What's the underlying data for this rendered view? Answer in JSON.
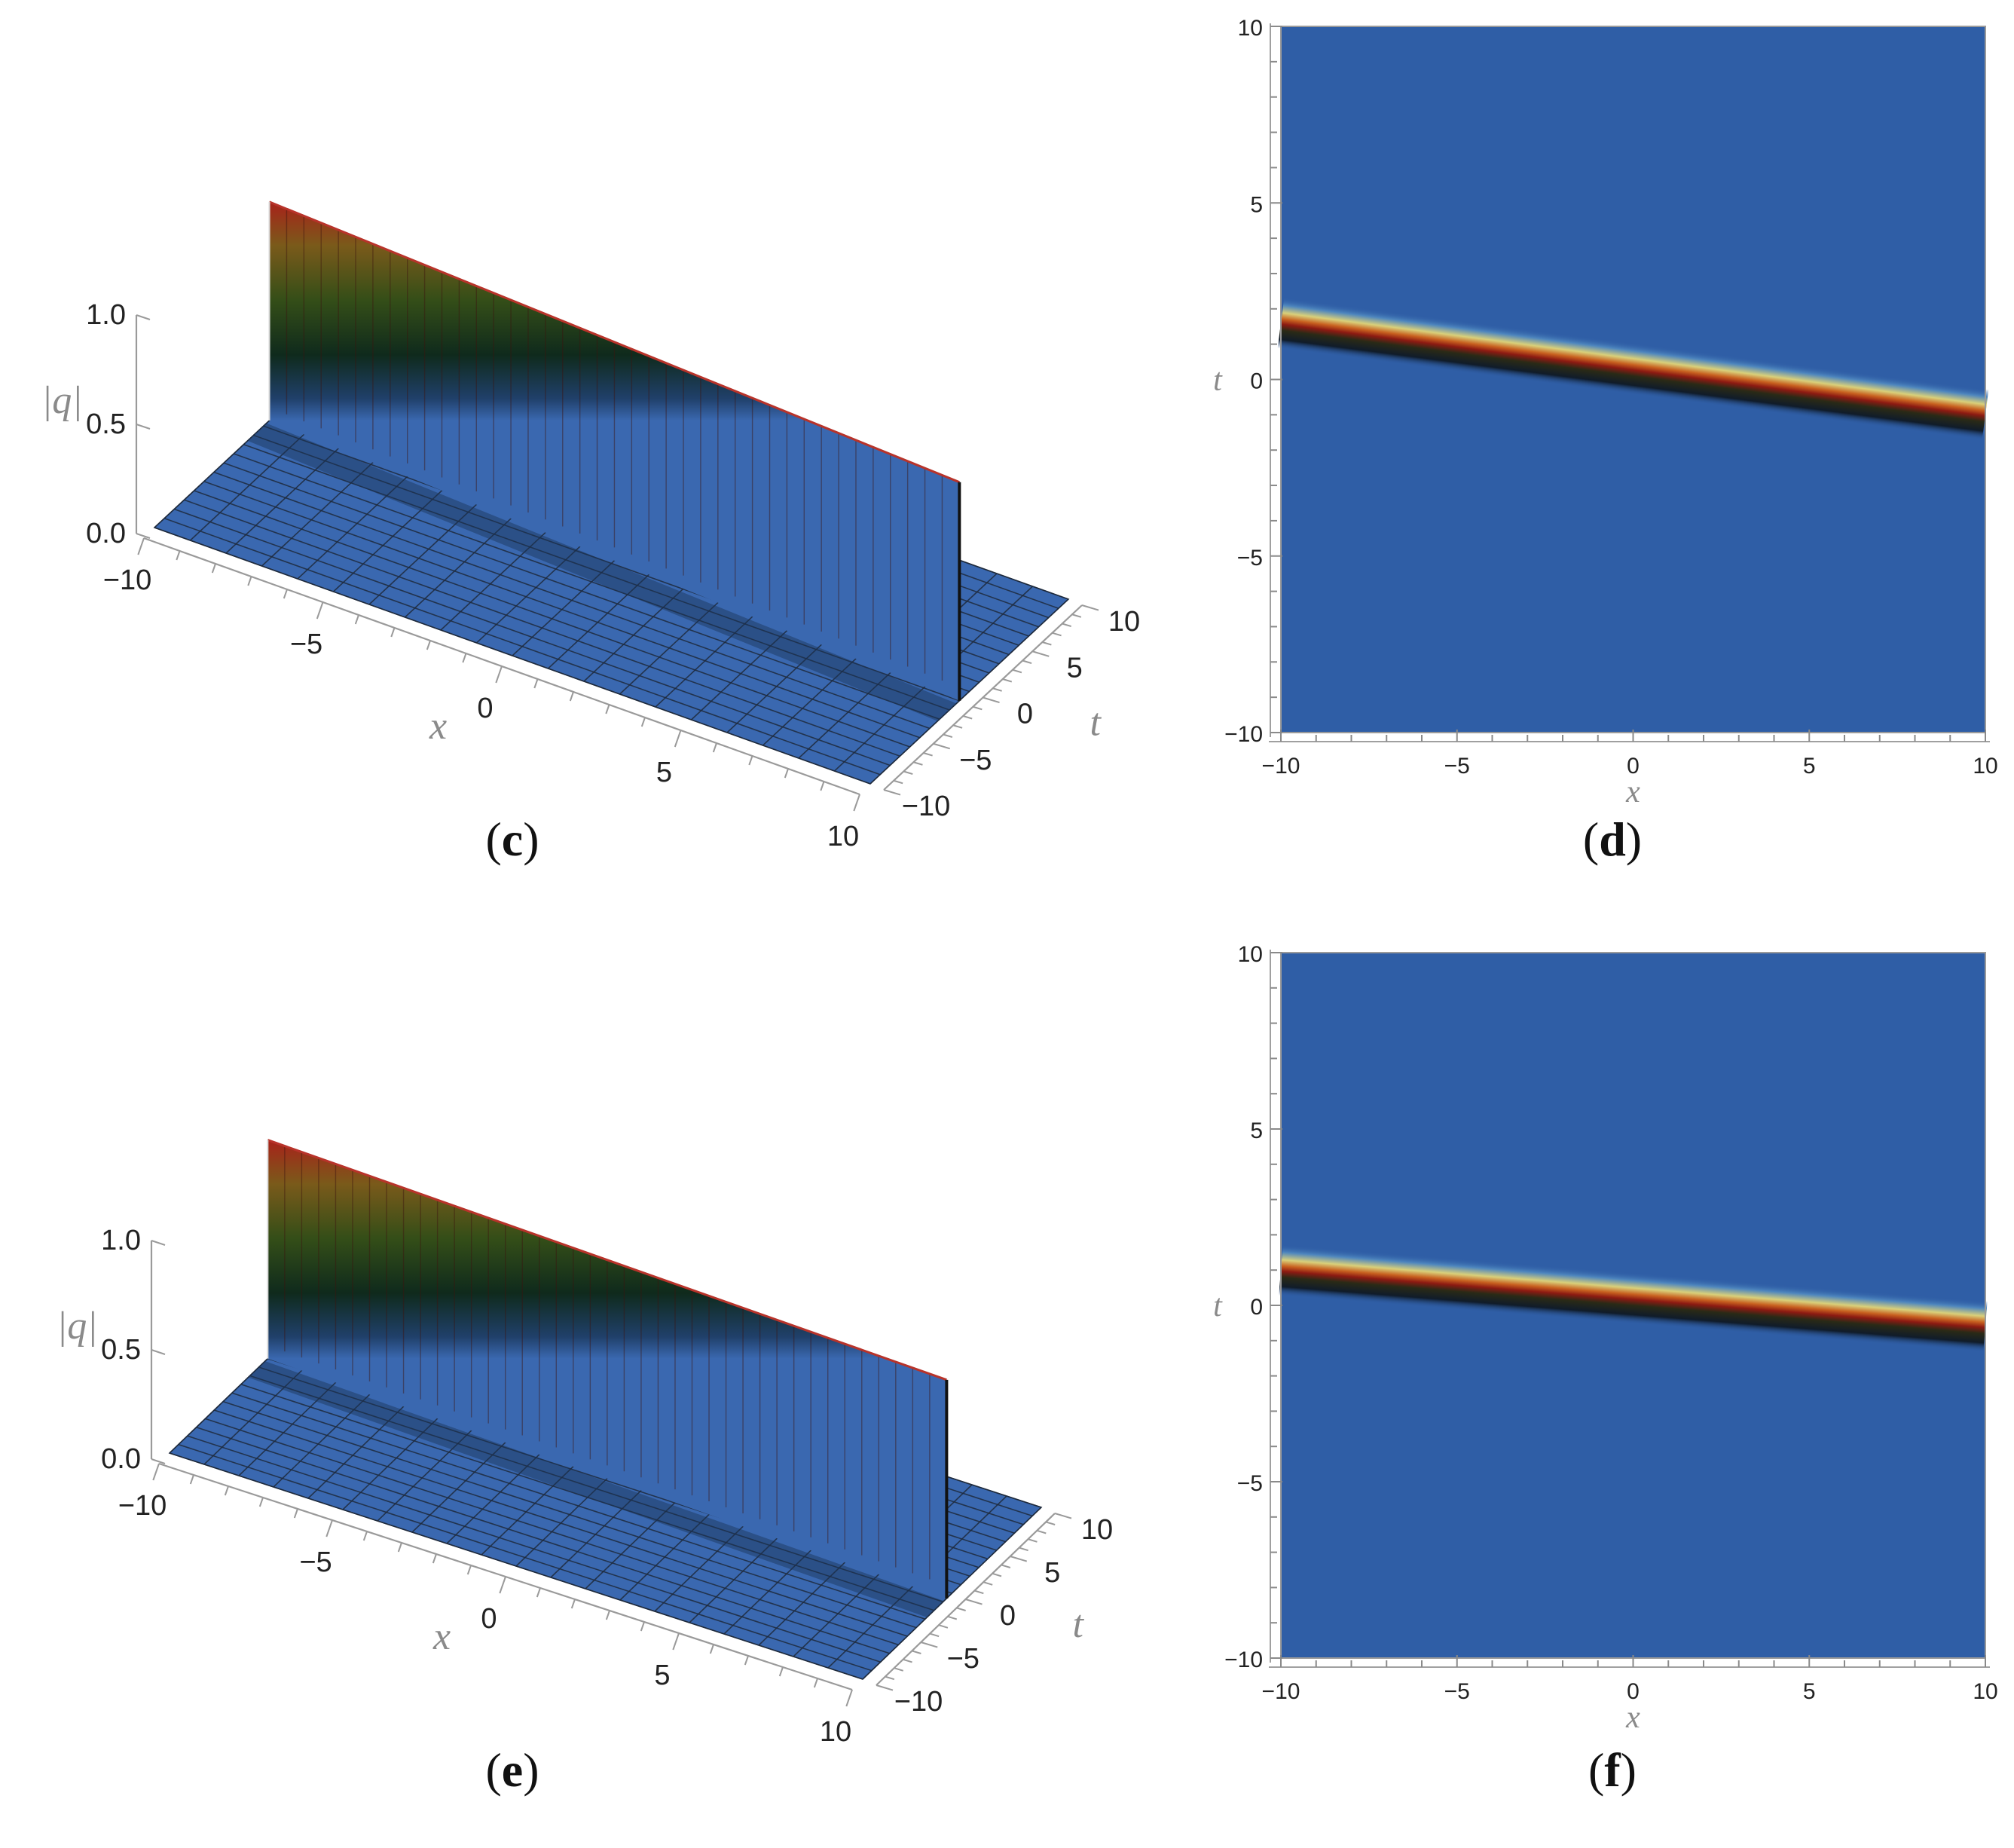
{
  "chart_data": [
    {
      "panel": "c",
      "type": "surface3d",
      "xlabel": "x",
      "ylabel": "t",
      "zlabel": "|q|",
      "xlim": [
        -10,
        10
      ],
      "ylim": [
        -10,
        10
      ],
      "zlim": [
        0,
        1
      ],
      "x_ticks": [
        "-10",
        "-5",
        "0",
        "5",
        "10"
      ],
      "y_ticks": [
        "-10",
        "-5",
        "0",
        "5",
        "10"
      ],
      "z_ticks": [
        "0.0",
        "0.5",
        "1.0"
      ],
      "wave": {
        "line_t_at_x_min": 1.6,
        "line_t_at_x_max": -1.0,
        "peak": 1.0
      },
      "label": {
        "open": "(",
        "letter": "c",
        "close": ")"
      }
    },
    {
      "panel": "d",
      "type": "density",
      "xlabel": "x",
      "ylabel": "t",
      "xlim": [
        -10,
        10
      ],
      "ylim": [
        -10,
        10
      ],
      "x_ticks": [
        "-10",
        "-5",
        "0",
        "5",
        "10"
      ],
      "y_ticks": [
        "-10",
        "-5",
        "0",
        "5",
        "10"
      ],
      "wave": {
        "line_t_at_x_min": 1.6,
        "line_t_at_x_max": -1.0
      },
      "label": {
        "open": "(",
        "letter": "d",
        "close": ")"
      }
    },
    {
      "panel": "e",
      "type": "surface3d",
      "xlabel": "x",
      "ylabel": "t",
      "zlabel": "|q|",
      "xlim": [
        -10,
        10
      ],
      "ylim": [
        -10,
        10
      ],
      "zlim": [
        0,
        1
      ],
      "x_ticks": [
        "-10",
        "-5",
        "0",
        "5",
        "10"
      ],
      "y_ticks": [
        "-10",
        "-5",
        "0",
        "5",
        "10"
      ],
      "z_ticks": [
        "0.0",
        "0.5",
        "1.0"
      ],
      "wave": {
        "line_t_at_x_min": 1.0,
        "line_t_at_x_max": -0.6,
        "peak": 1.0
      },
      "label": {
        "open": "(",
        "letter": "e",
        "close": ")"
      }
    },
    {
      "panel": "f",
      "type": "density",
      "xlabel": "x",
      "ylabel": "t",
      "xlim": [
        -10,
        10
      ],
      "ylim": [
        -10,
        10
      ],
      "x_ticks": [
        "-10",
        "-5",
        "0",
        "5",
        "10"
      ],
      "y_ticks": [
        "-10",
        "-5",
        "0",
        "5",
        "10"
      ],
      "wave": {
        "line_t_at_x_min": 1.0,
        "line_t_at_x_max": -0.6
      },
      "label": {
        "open": "(",
        "letter": "f",
        "close": ")"
      }
    }
  ],
  "colors": {
    "background_surface": "#3a68b0",
    "density_background": "#2f5ea6",
    "grid": "#1e2a3c",
    "wave_red": "#b3211b",
    "wave_green": "#2f4a16",
    "wave_yellow": "#d2c66a"
  }
}
